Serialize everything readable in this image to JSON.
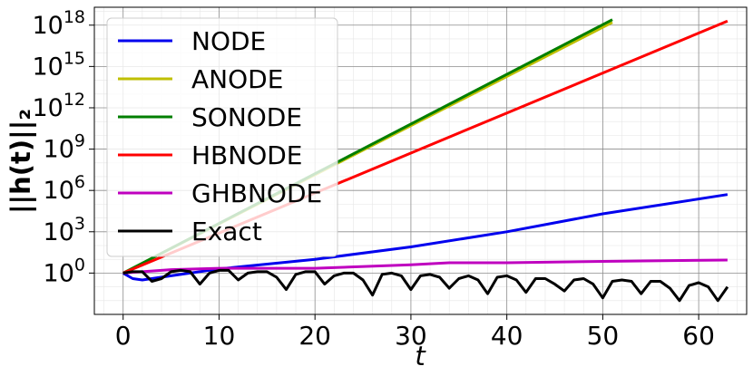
{
  "chart_data": {
    "type": "line",
    "ylabel": "||h(t)||₂",
    "xlabel": "t",
    "y_scale": "log",
    "grid": true,
    "minor_grid": true,
    "legend_position": "top-left",
    "xlim": [
      -3,
      65
    ],
    "ylim_exponent": [
      -3,
      19.3
    ],
    "x_ticks": [
      0,
      10,
      20,
      30,
      40,
      50,
      60
    ],
    "x_tick_labels": [
      "0",
      "10",
      "20",
      "30",
      "40",
      "50",
      "60"
    ],
    "y_ticks": [
      {
        "base": "10",
        "exp": "0"
      },
      {
        "base": "10",
        "exp": "3"
      },
      {
        "base": "10",
        "exp": "6"
      },
      {
        "base": "10",
        "exp": "9"
      },
      {
        "base": "10",
        "exp": "12"
      },
      {
        "base": "10",
        "exp": "15"
      },
      {
        "base": "10",
        "exp": "18"
      }
    ],
    "series": [
      {
        "name": "NODE",
        "color": "#0000ee",
        "x": [
          0,
          1,
          2,
          5,
          10,
          20,
          30,
          40,
          50,
          63
        ],
        "log10_y": [
          0,
          -0.4,
          -0.5,
          -0.2,
          0.3,
          1.0,
          1.9,
          3.0,
          4.3,
          5.7
        ]
      },
      {
        "name": "ANODE",
        "color": "#bfbf00",
        "x": [
          0,
          51
        ],
        "log10_y": [
          0,
          18.2
        ]
      },
      {
        "name": "SONODE",
        "color": "#007f00",
        "x": [
          0,
          51
        ],
        "log10_y": [
          0,
          18.4
        ]
      },
      {
        "name": "HBNODE",
        "color": "#ff0000",
        "x": [
          0,
          63
        ],
        "log10_y": [
          0,
          18.3
        ]
      },
      {
        "name": "GHBNODE",
        "color": "#bf00bf",
        "x": [
          0,
          2,
          5,
          10,
          20,
          30,
          34,
          40,
          50,
          63
        ],
        "log10_y": [
          0,
          0.1,
          0.25,
          0.35,
          0.35,
          0.6,
          0.75,
          0.75,
          0.85,
          0.95
        ]
      },
      {
        "name": "Exact",
        "color": "#000000",
        "x": [
          0,
          1,
          2,
          3,
          4,
          5,
          6,
          7,
          8,
          9,
          10,
          11,
          12,
          13,
          14,
          15,
          16,
          17,
          18,
          19,
          20,
          21,
          22,
          23,
          24,
          25,
          26,
          27,
          28,
          29,
          30,
          31,
          32,
          33,
          34,
          35,
          36,
          37,
          38,
          39,
          40,
          41,
          42,
          43,
          44,
          45,
          46,
          47,
          48,
          49,
          50,
          51,
          52,
          53,
          54,
          55,
          56,
          57,
          58,
          59,
          60,
          61,
          62,
          63
        ],
        "log10_y": [
          0,
          0.1,
          0.1,
          -0.6,
          -0.4,
          0.1,
          0.2,
          0.1,
          -0.8,
          0.0,
          0.2,
          0.2,
          -0.5,
          0.0,
          0.1,
          0.1,
          -0.3,
          -1.2,
          -0.1,
          0.1,
          0.1,
          -0.8,
          -0.2,
          0.0,
          0.0,
          -0.5,
          -1.6,
          -0.1,
          0.0,
          -0.2,
          -1.2,
          -0.2,
          -0.1,
          -0.3,
          -1.1,
          -0.4,
          -0.2,
          -0.5,
          -1.5,
          -0.3,
          -0.2,
          -0.5,
          -1.4,
          -0.4,
          -0.4,
          -0.8,
          -1.3,
          -0.5,
          -0.4,
          -0.8,
          -1.8,
          -0.6,
          -0.5,
          -0.6,
          -1.5,
          -0.6,
          -0.6,
          -1.1,
          -2.0,
          -0.9,
          -0.7,
          -1.0,
          -2.0,
          -1.0
        ]
      }
    ]
  }
}
